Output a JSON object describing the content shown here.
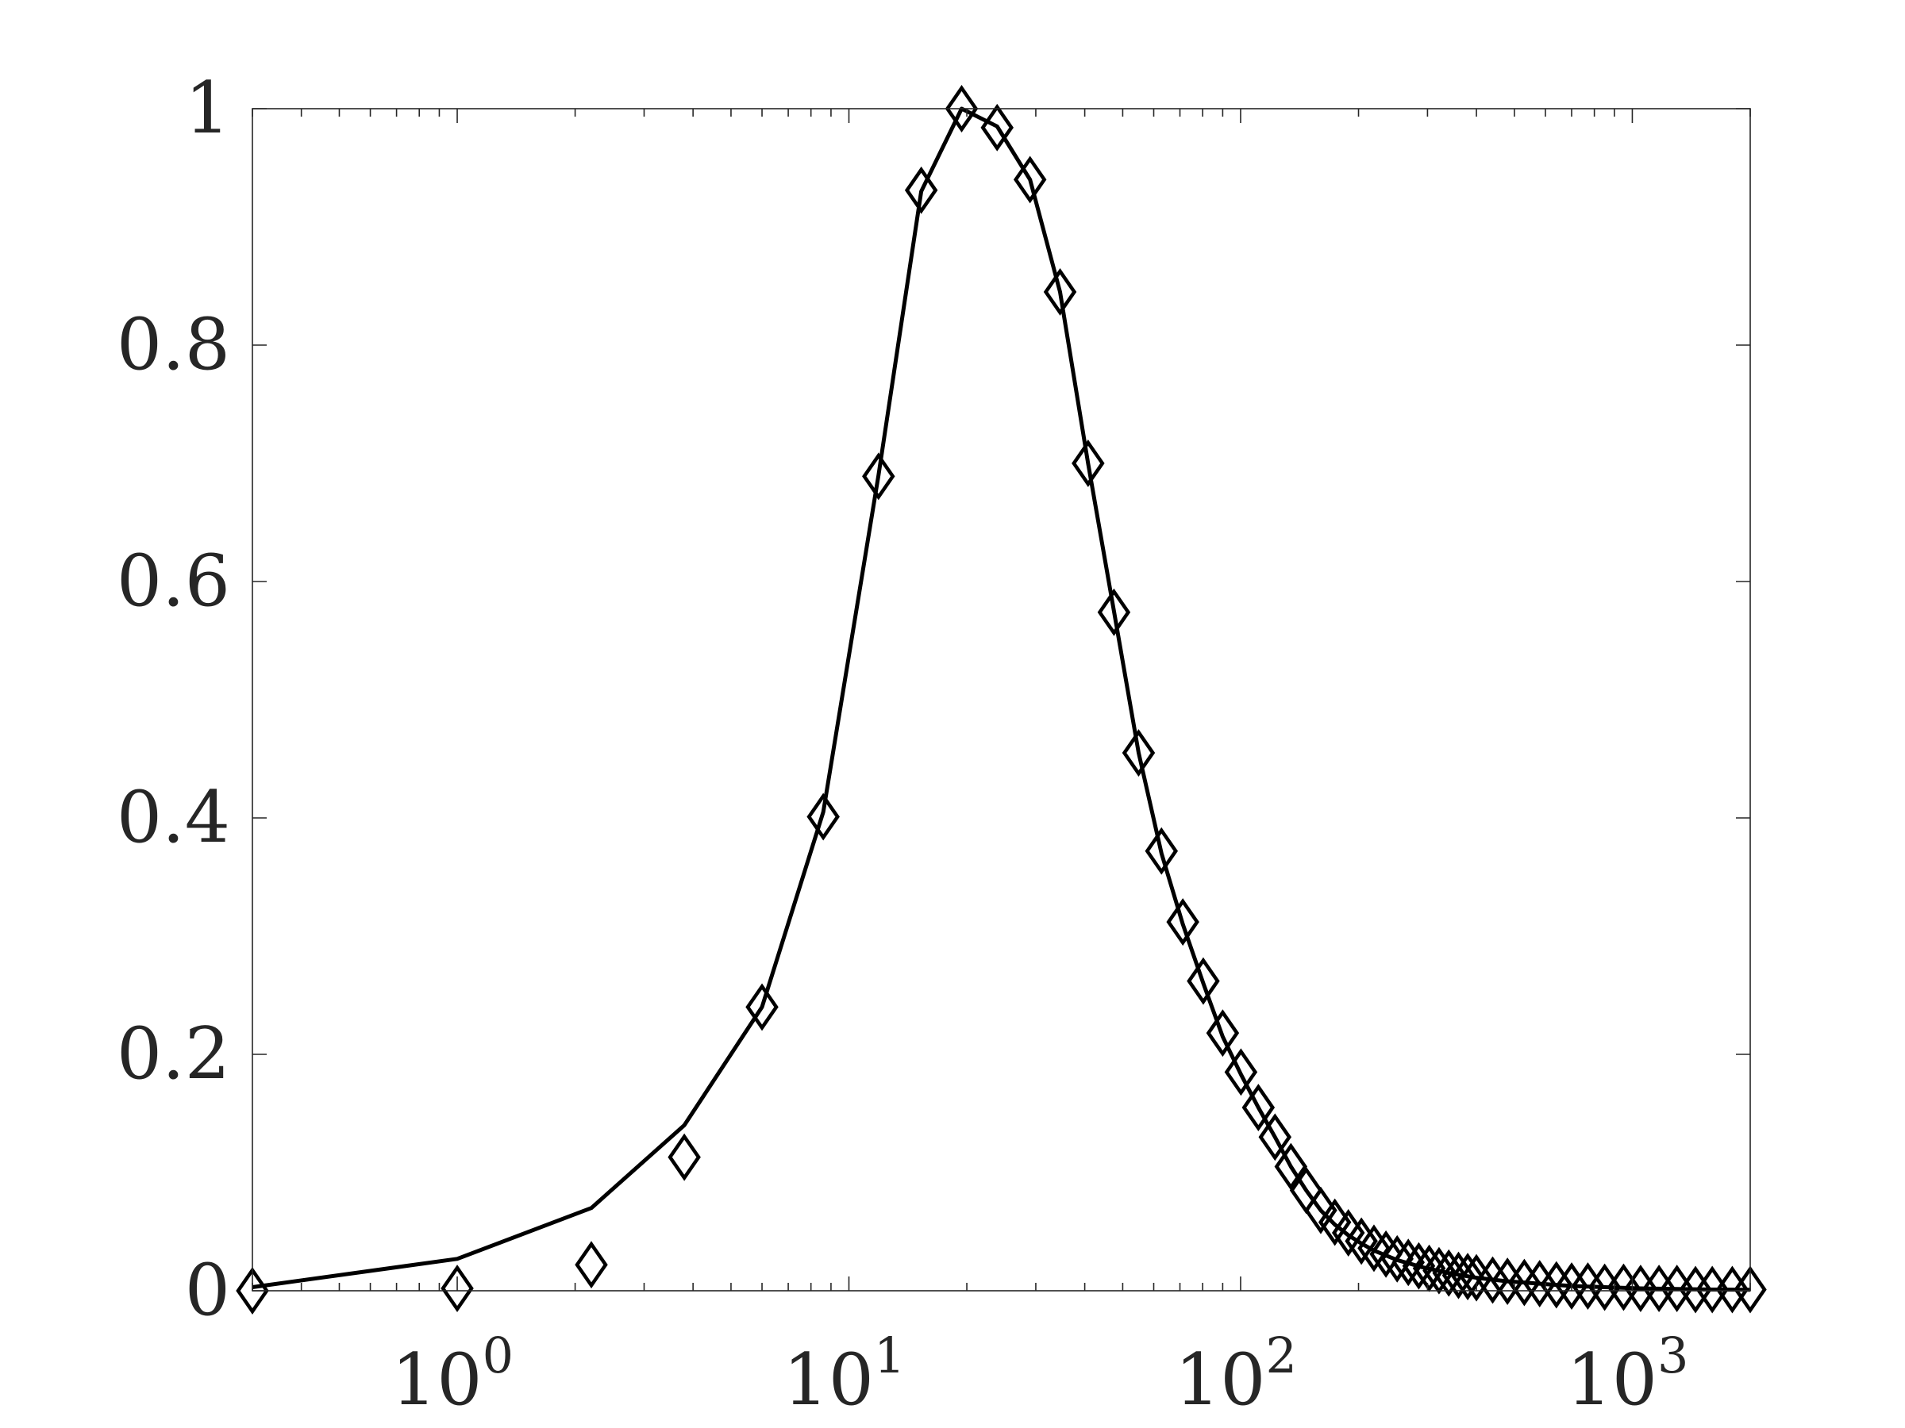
{
  "chart_data": {
    "type": "line",
    "title": "",
    "xlabel": "",
    "ylabel": "",
    "x_scale": "log",
    "xlim": [
      0.3,
      2000
    ],
    "ylim": [
      0,
      1
    ],
    "grid": false,
    "box": true,
    "x_ticks": [
      {
        "value": 1,
        "base": "10",
        "exp": "0"
      },
      {
        "value": 10,
        "base": "10",
        "exp": "1"
      },
      {
        "value": 100,
        "base": "10",
        "exp": "2"
      },
      {
        "value": 1000,
        "base": "10",
        "exp": "3"
      }
    ],
    "y_ticks": [
      {
        "value": 0,
        "label": "0"
      },
      {
        "value": 0.2,
        "label": "0.2"
      },
      {
        "value": 0.4,
        "label": "0.4"
      },
      {
        "value": 0.6,
        "label": "0.6"
      },
      {
        "value": 0.8,
        "label": "0.8"
      },
      {
        "value": 1,
        "label": "1"
      }
    ],
    "colors": {
      "line": "#000000",
      "axis": "#262626"
    },
    "series": [
      {
        "style": "solid-line",
        "x": [
          0.3,
          1,
          2.2,
          3.8,
          6,
          8.6,
          11.9,
          15.3,
          19.4,
          23.9,
          29,
          34.6,
          40.8,
          47.5,
          54.9,
          62.8,
          71.2,
          80.3,
          90,
          100.2,
          111,
          122.4,
          134.4,
          147,
          160.2,
          174,
          188.4,
          203.4,
          219,
          251,
          290,
          340,
          400,
          480,
          580,
          700,
          850,
          1050,
          1300,
          1600,
          2000
        ],
        "y": [
          0.003,
          0.027,
          0.07,
          0.14,
          0.24,
          0.405,
          0.69,
          0.93,
          1.0,
          0.985,
          0.94,
          0.845,
          0.7,
          0.575,
          0.455,
          0.37,
          0.31,
          0.26,
          0.215,
          0.183,
          0.155,
          0.13,
          0.105,
          0.085,
          0.068,
          0.056,
          0.047,
          0.04,
          0.034,
          0.026,
          0.02,
          0.015,
          0.011,
          0.008,
          0.006,
          0.004,
          0.003,
          0.002,
          0.0015,
          0.001,
          0.0008
        ]
      },
      {
        "style": "diamond-markers",
        "x": [
          0.3,
          1,
          2.2,
          3.8,
          6,
          8.6,
          11.9,
          15.3,
          19.4,
          23.9,
          29,
          34.6,
          40.8,
          47.5,
          54.9,
          62.8,
          71.2,
          80.3,
          90,
          100.2,
          111,
          122.4,
          134.4,
          147,
          160.2,
          174,
          188.4,
          203.4,
          219,
          235,
          251,
          268,
          285,
          303,
          321,
          340,
          360,
          380,
          400,
          440,
          480,
          530,
          580,
          640,
          700,
          770,
          850,
          950,
          1050,
          1170,
          1300,
          1450,
          1600,
          1800,
          2000
        ],
        "y": [
          0.0,
          0.002,
          0.022,
          0.113,
          0.24,
          0.401,
          0.689,
          0.931,
          1.0,
          0.984,
          0.94,
          0.845,
          0.7,
          0.574,
          0.455,
          0.372,
          0.312,
          0.262,
          0.218,
          0.185,
          0.155,
          0.13,
          0.105,
          0.085,
          0.068,
          0.058,
          0.049,
          0.042,
          0.036,
          0.031,
          0.027,
          0.024,
          0.021,
          0.019,
          0.017,
          0.015,
          0.013,
          0.012,
          0.011,
          0.009,
          0.008,
          0.007,
          0.006,
          0.005,
          0.004,
          0.004,
          0.003,
          0.003,
          0.002,
          0.002,
          0.002,
          0.001,
          0.001,
          0.001,
          0.001
        ]
      }
    ]
  }
}
